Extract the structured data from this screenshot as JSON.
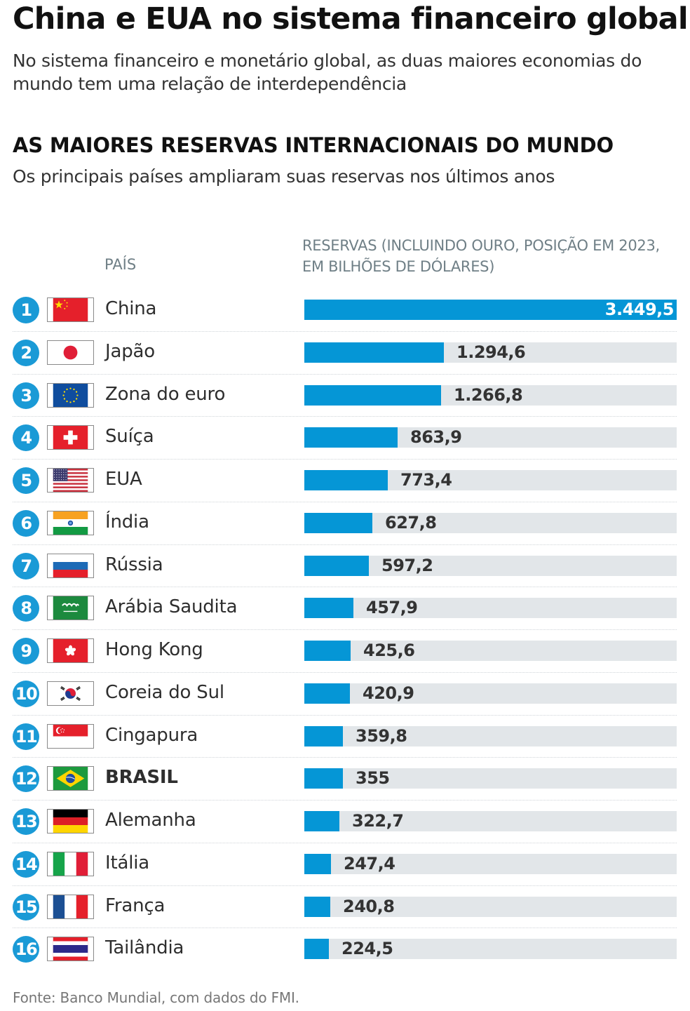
{
  "header": {
    "title": "China e EUA no sistema financeiro global",
    "subtitle": "No sistema financeiro e monetário global, as duas maiores economias do mundo tem uma relação de interdependência"
  },
  "section": {
    "title": "AS MAIORES RESERVAS INTERNACIONAIS DO MUNDO",
    "subtitle": "Os principais países ampliaram suas reservas nos últimos anos"
  },
  "columns": {
    "country": "PAÍS",
    "value": "RESERVAS (INCLUINDO OURO, POSIÇÃO EM 2023, EM BILHÕES DE DÓLARES)"
  },
  "source": "Fonte: Banco Mundial, com dados do FMI.",
  "colors": {
    "bar": "#0596d6",
    "track": "#e2e6e9",
    "rank_badge": "#1a9ad6"
  },
  "chart_data": {
    "type": "bar",
    "orientation": "horizontal",
    "title": "AS MAIORES RESERVAS INTERNACIONAIS DO MUNDO",
    "xlabel": "RESERVAS (INCLUINDO OURO, POSIÇÃO EM 2023, EM BILHÕES DE DÓLARES)",
    "ylabel": "PAÍS",
    "xlim": [
      0,
      3449.5
    ],
    "categories": [
      "China",
      "Japão",
      "Zona do euro",
      "Suíça",
      "EUA",
      "Índia",
      "Rússia",
      "Arábia Saudita",
      "Hong Kong",
      "Coreia do Sul",
      "Cingapura",
      "BRASIL",
      "Alemanha",
      "Itália",
      "França",
      "Tailândia"
    ],
    "values": [
      3449.5,
      1294.6,
      1266.8,
      863.9,
      773.4,
      627.8,
      597.2,
      457.9,
      425.6,
      420.9,
      359.8,
      355,
      322.7,
      247.4,
      240.8,
      224.5
    ],
    "rows": [
      {
        "rank": "1",
        "country": "China",
        "flag": "flag-china",
        "value": 3449.5,
        "label": "3.449,5"
      },
      {
        "rank": "2",
        "country": "Japão",
        "flag": "flag-japan",
        "value": 1294.6,
        "label": "1.294,6"
      },
      {
        "rank": "3",
        "country": "Zona do euro",
        "flag": "flag-eu",
        "value": 1266.8,
        "label": "1.266,8"
      },
      {
        "rank": "4",
        "country": "Suíça",
        "flag": "flag-switzerland",
        "value": 863.9,
        "label": "863,9"
      },
      {
        "rank": "5",
        "country": "EUA",
        "flag": "flag-usa",
        "value": 773.4,
        "label": "773,4"
      },
      {
        "rank": "6",
        "country": "Índia",
        "flag": "flag-india",
        "value": 627.8,
        "label": "627,8"
      },
      {
        "rank": "7",
        "country": "Rússia",
        "flag": "flag-russia",
        "value": 597.2,
        "label": "597,2"
      },
      {
        "rank": "8",
        "country": "Arábia Saudita",
        "flag": "flag-saudi-arabia",
        "value": 457.9,
        "label": "457,9"
      },
      {
        "rank": "9",
        "country": "Hong Kong",
        "flag": "flag-hong-kong",
        "value": 425.6,
        "label": "425,6"
      },
      {
        "rank": "10",
        "country": "Coreia do Sul",
        "flag": "flag-south-korea",
        "value": 420.9,
        "label": "420,9"
      },
      {
        "rank": "11",
        "country": "Cingapura",
        "flag": "flag-singapore",
        "value": 359.8,
        "label": "359,8"
      },
      {
        "rank": "12",
        "country": "BRASIL",
        "flag": "flag-brazil",
        "value": 355,
        "label": "355",
        "highlight": true
      },
      {
        "rank": "13",
        "country": "Alemanha",
        "flag": "flag-germany",
        "value": 322.7,
        "label": "322,7"
      },
      {
        "rank": "14",
        "country": "Itália",
        "flag": "flag-italy",
        "value": 247.4,
        "label": "247,4"
      },
      {
        "rank": "15",
        "country": "França",
        "flag": "flag-france",
        "value": 240.8,
        "label": "240,8"
      },
      {
        "rank": "16",
        "country": "Tailândia",
        "flag": "flag-thailand",
        "value": 224.5,
        "label": "224,5"
      }
    ]
  }
}
